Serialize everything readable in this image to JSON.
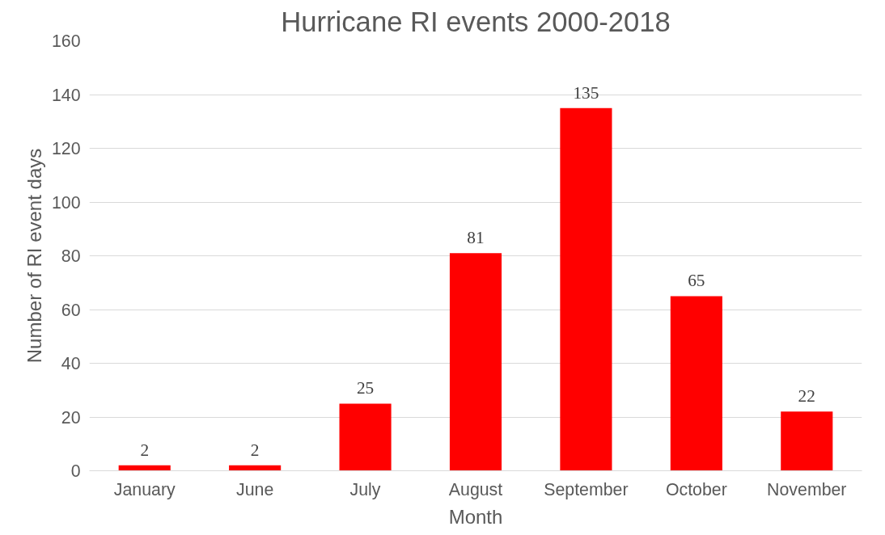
{
  "chart_data": {
    "type": "bar",
    "title": "Hurricane RI events 2000-2018",
    "xlabel": "Month",
    "ylabel": "Number of RI event days",
    "categories": [
      "January",
      "June",
      "July",
      "August",
      "September",
      "October",
      "November"
    ],
    "values": [
      2,
      2,
      25,
      81,
      135,
      65,
      22
    ],
    "color": "#ff0000",
    "ylim": [
      0,
      160
    ],
    "yticks": [
      0,
      20,
      40,
      60,
      80,
      100,
      120,
      140,
      160
    ],
    "grid": "y",
    "data_labels": true
  }
}
